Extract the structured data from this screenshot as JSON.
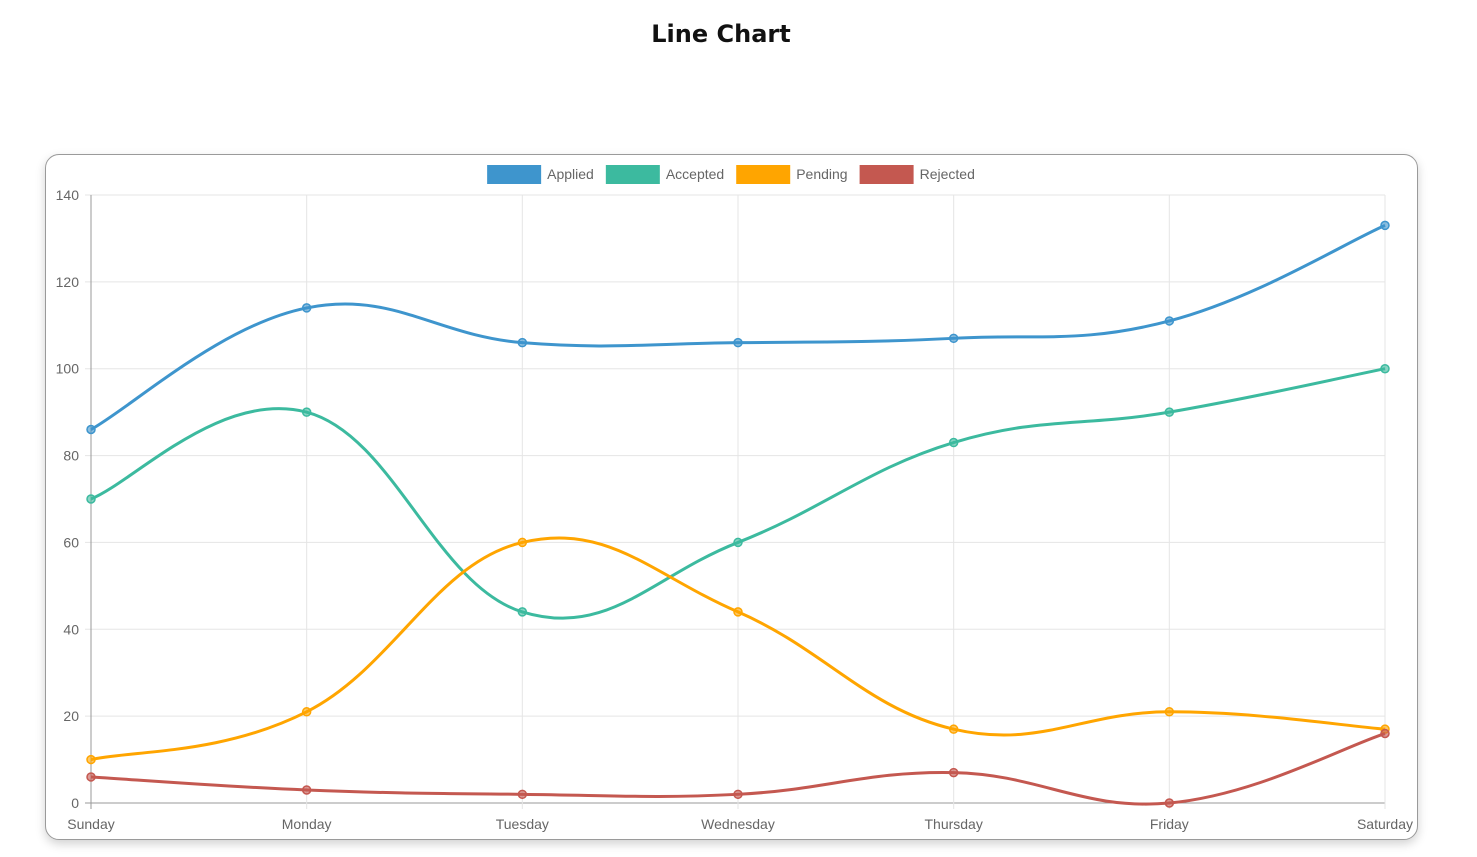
{
  "page": {
    "title": "Line Chart"
  },
  "chart_data": {
    "type": "line",
    "title": "",
    "xlabel": "",
    "ylabel": "",
    "categories": [
      "Sunday",
      "Monday",
      "Tuesday",
      "Wednesday",
      "Thursday",
      "Friday",
      "Saturday"
    ],
    "ylim": [
      0,
      140
    ],
    "yticks": [
      0,
      20,
      40,
      60,
      80,
      100,
      120,
      140
    ],
    "grid": true,
    "legend_position": "top-center",
    "curve": "smooth",
    "series": [
      {
        "name": "Applied",
        "color": "#3e95cd",
        "values": [
          86,
          114,
          106,
          106,
          107,
          111,
          133
        ]
      },
      {
        "name": "Accepted",
        "color": "#3cba9f",
        "values": [
          70,
          90,
          44,
          60,
          83,
          90,
          100
        ]
      },
      {
        "name": "Pending",
        "color": "#ffa500",
        "values": [
          10,
          21,
          60,
          44,
          17,
          21,
          17
        ]
      },
      {
        "name": "Rejected",
        "color": "#c45850",
        "values": [
          6,
          3,
          2,
          2,
          7,
          0,
          16
        ]
      }
    ]
  }
}
